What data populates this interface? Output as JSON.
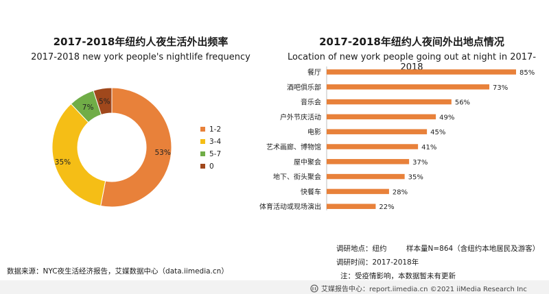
{
  "chart_data": [
    {
      "type": "pie",
      "title": "2017-2018年纽约人夜生活外出频率",
      "subtitle": "2017-2018 new york people's nightlife frequency",
      "categories": [
        "1-2",
        "3-4",
        "5-7",
        "0"
      ],
      "values": [
        53,
        35,
        7,
        5
      ],
      "value_labels": [
        "53%",
        "35%",
        "7%",
        "5%"
      ],
      "colors": [
        "#E8813A",
        "#F5BE16",
        "#70AD47",
        "#A0481C"
      ],
      "legend_position": "right"
    },
    {
      "type": "bar",
      "orientation": "horizontal",
      "title": "2017-2018年纽约人夜间外出地点情况",
      "subtitle": "Location of new york people going out at night in 2017-2018",
      "categories": [
        "餐厅",
        "酒吧俱乐部",
        "音乐会",
        "户外节庆活动",
        "电影",
        "艺术画廊、博物馆",
        "屋中聚会",
        "地下、街头聚会",
        "快餐车",
        "体育活动或现场演出"
      ],
      "values": [
        85,
        73,
        56,
        49,
        45,
        41,
        37,
        35,
        28,
        22
      ],
      "value_labels": [
        "85%",
        "73%",
        "56%",
        "49%",
        "45%",
        "41%",
        "37%",
        "35%",
        "28%",
        "22%"
      ],
      "color": "#E8813A",
      "xlim": [
        0,
        85
      ]
    }
  ],
  "notes": {
    "location": "调研地点：纽约",
    "sample": "样本量N=864（含纽约本地居民及游客）",
    "time": "调研时间：2017-2018年",
    "remark": "注：受疫情影响，本数据暂未有更新",
    "source": "数据来源：NYC夜生活经济报告，艾媒数据中心（data.iimedia.cn）"
  },
  "footer": {
    "logo_icon": "iimedia-logo-icon",
    "text": "艾媒报告中心：report.iimedia.cn  ©2021  iiMedia Research  Inc"
  }
}
